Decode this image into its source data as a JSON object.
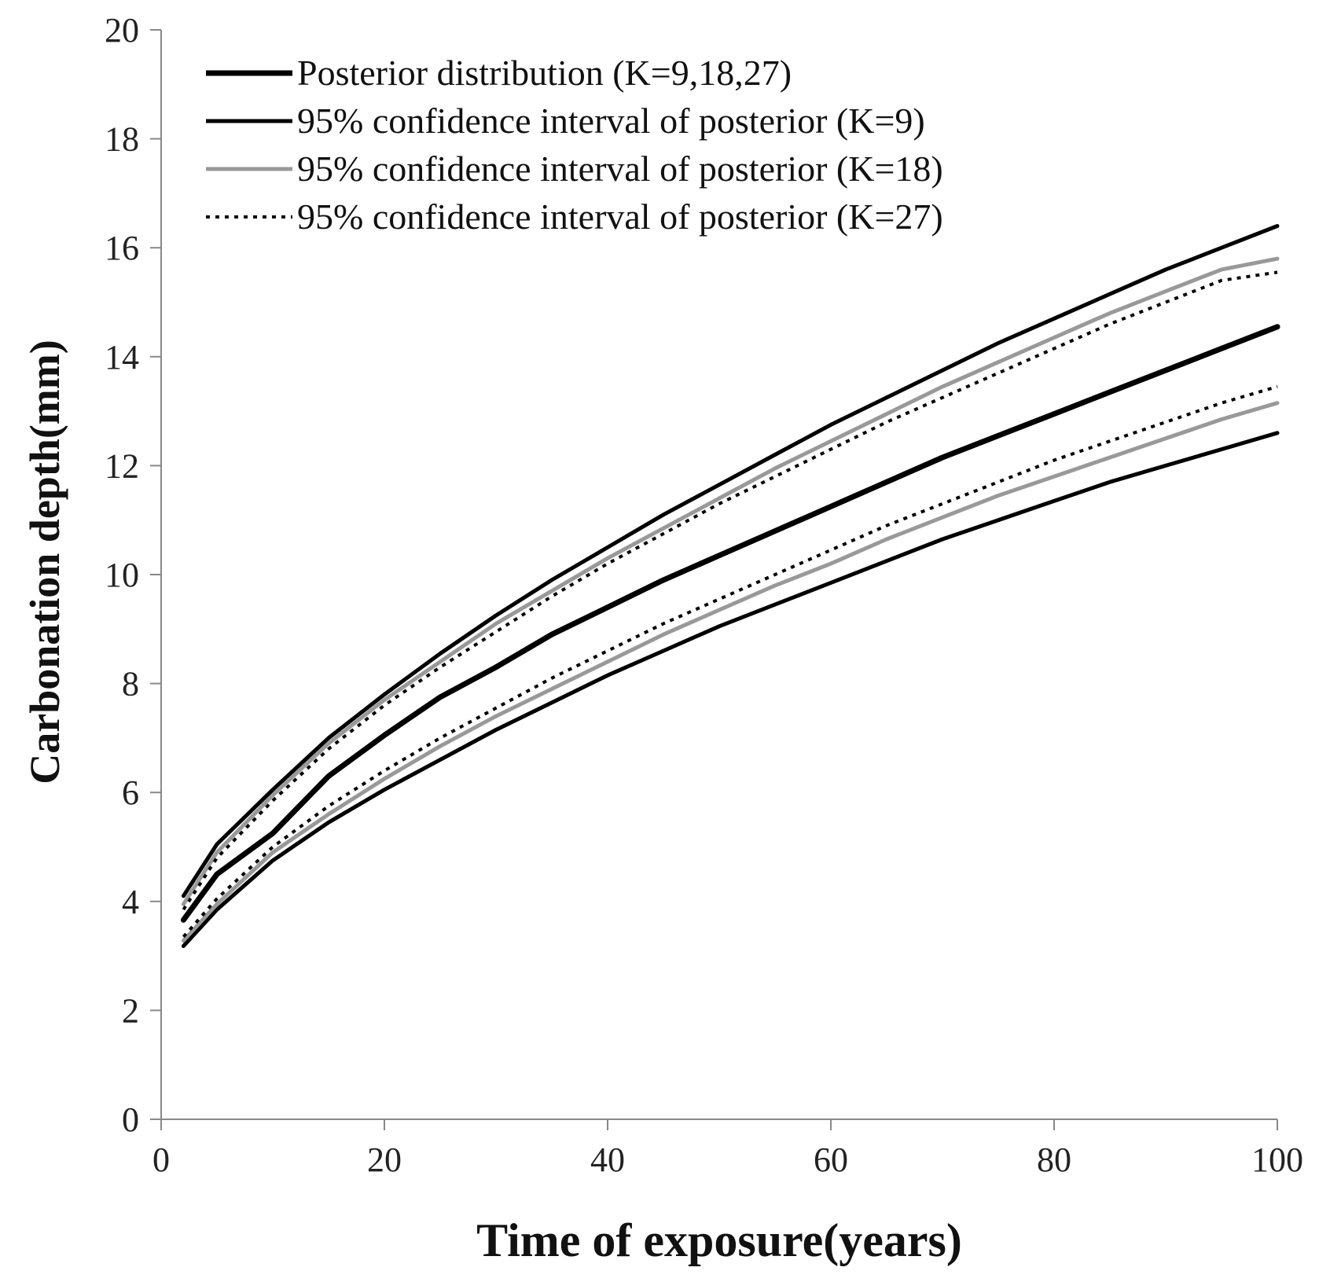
{
  "chart_data": {
    "type": "line",
    "title": "",
    "xlabel": "Time of exposure(years)",
    "ylabel": "Carbonation depth(mm)",
    "xlim": [
      0,
      100
    ],
    "ylim": [
      0,
      20
    ],
    "xticks": [
      0,
      20,
      40,
      60,
      80,
      100
    ],
    "yticks": [
      0,
      2,
      4,
      6,
      8,
      10,
      12,
      14,
      16,
      18,
      20
    ],
    "x": [
      2,
      5,
      10,
      15,
      20,
      25,
      30,
      35,
      40,
      45,
      50,
      55,
      60,
      65,
      70,
      75,
      80,
      85,
      90,
      95,
      100
    ],
    "legend_position": "top-left",
    "series": [
      {
        "name": "Posterior distribution (K=9,18,27)",
        "color": "#000000",
        "style": "thick",
        "values": [
          3.66,
          4.5,
          5.25,
          6.3,
          7.05,
          7.75,
          8.3,
          8.9,
          9.4,
          9.9,
          10.35,
          10.8,
          11.25,
          11.7,
          12.15,
          12.55,
          12.95,
          13.35,
          13.75,
          14.15,
          14.55
        ]
      },
      {
        "name": "95% confidence interval of posterior (K=9)",
        "color": "#000000",
        "style": "solid",
        "values": [
          4.1,
          5.05,
          6.05,
          7.0,
          7.8,
          8.55,
          9.25,
          9.9,
          10.5,
          11.1,
          11.65,
          12.2,
          12.75,
          13.25,
          13.75,
          14.25,
          14.7,
          15.15,
          15.6,
          16.0,
          16.4
        ]
      },
      {
        "name": "",
        "color": "#000000",
        "style": "solid",
        "values": [
          3.18,
          3.85,
          4.75,
          5.45,
          6.05,
          6.6,
          7.15,
          7.65,
          8.15,
          8.6,
          9.05,
          9.45,
          9.85,
          10.25,
          10.65,
          11.0,
          11.35,
          11.7,
          12.0,
          12.3,
          12.6
        ]
      },
      {
        "name": "95% confidence interval of posterior (K=18)",
        "color": "#999999",
        "style": "solid",
        "values": [
          3.95,
          4.9,
          5.95,
          6.9,
          7.7,
          8.4,
          9.1,
          9.7,
          10.3,
          10.85,
          11.4,
          11.95,
          12.45,
          12.95,
          13.45,
          13.9,
          14.35,
          14.8,
          15.2,
          15.6,
          15.8
        ]
      },
      {
        "name": "",
        "color": "#999999",
        "style": "solid",
        "values": [
          3.28,
          3.95,
          4.9,
          5.6,
          6.25,
          6.85,
          7.4,
          7.9,
          8.4,
          8.9,
          9.35,
          9.8,
          10.2,
          10.65,
          11.05,
          11.45,
          11.8,
          12.15,
          12.5,
          12.85,
          13.15
        ]
      },
      {
        "name": "95% confidence interval of posterior (K=27)",
        "color": "#000000",
        "style": "dotted",
        "values": [
          3.85,
          4.8,
          5.85,
          6.8,
          7.6,
          8.3,
          8.95,
          9.6,
          10.2,
          10.75,
          11.3,
          11.8,
          12.3,
          12.8,
          13.25,
          13.7,
          14.15,
          14.6,
          15.0,
          15.4,
          15.55
        ]
      },
      {
        "name": "",
        "color": "#000000",
        "style": "dotted",
        "values": [
          3.35,
          4.05,
          5.0,
          5.75,
          6.4,
          7.0,
          7.55,
          8.1,
          8.6,
          9.1,
          9.55,
          10.0,
          10.45,
          10.9,
          11.3,
          11.7,
          12.1,
          12.45,
          12.8,
          13.15,
          13.45
        ]
      }
    ]
  }
}
